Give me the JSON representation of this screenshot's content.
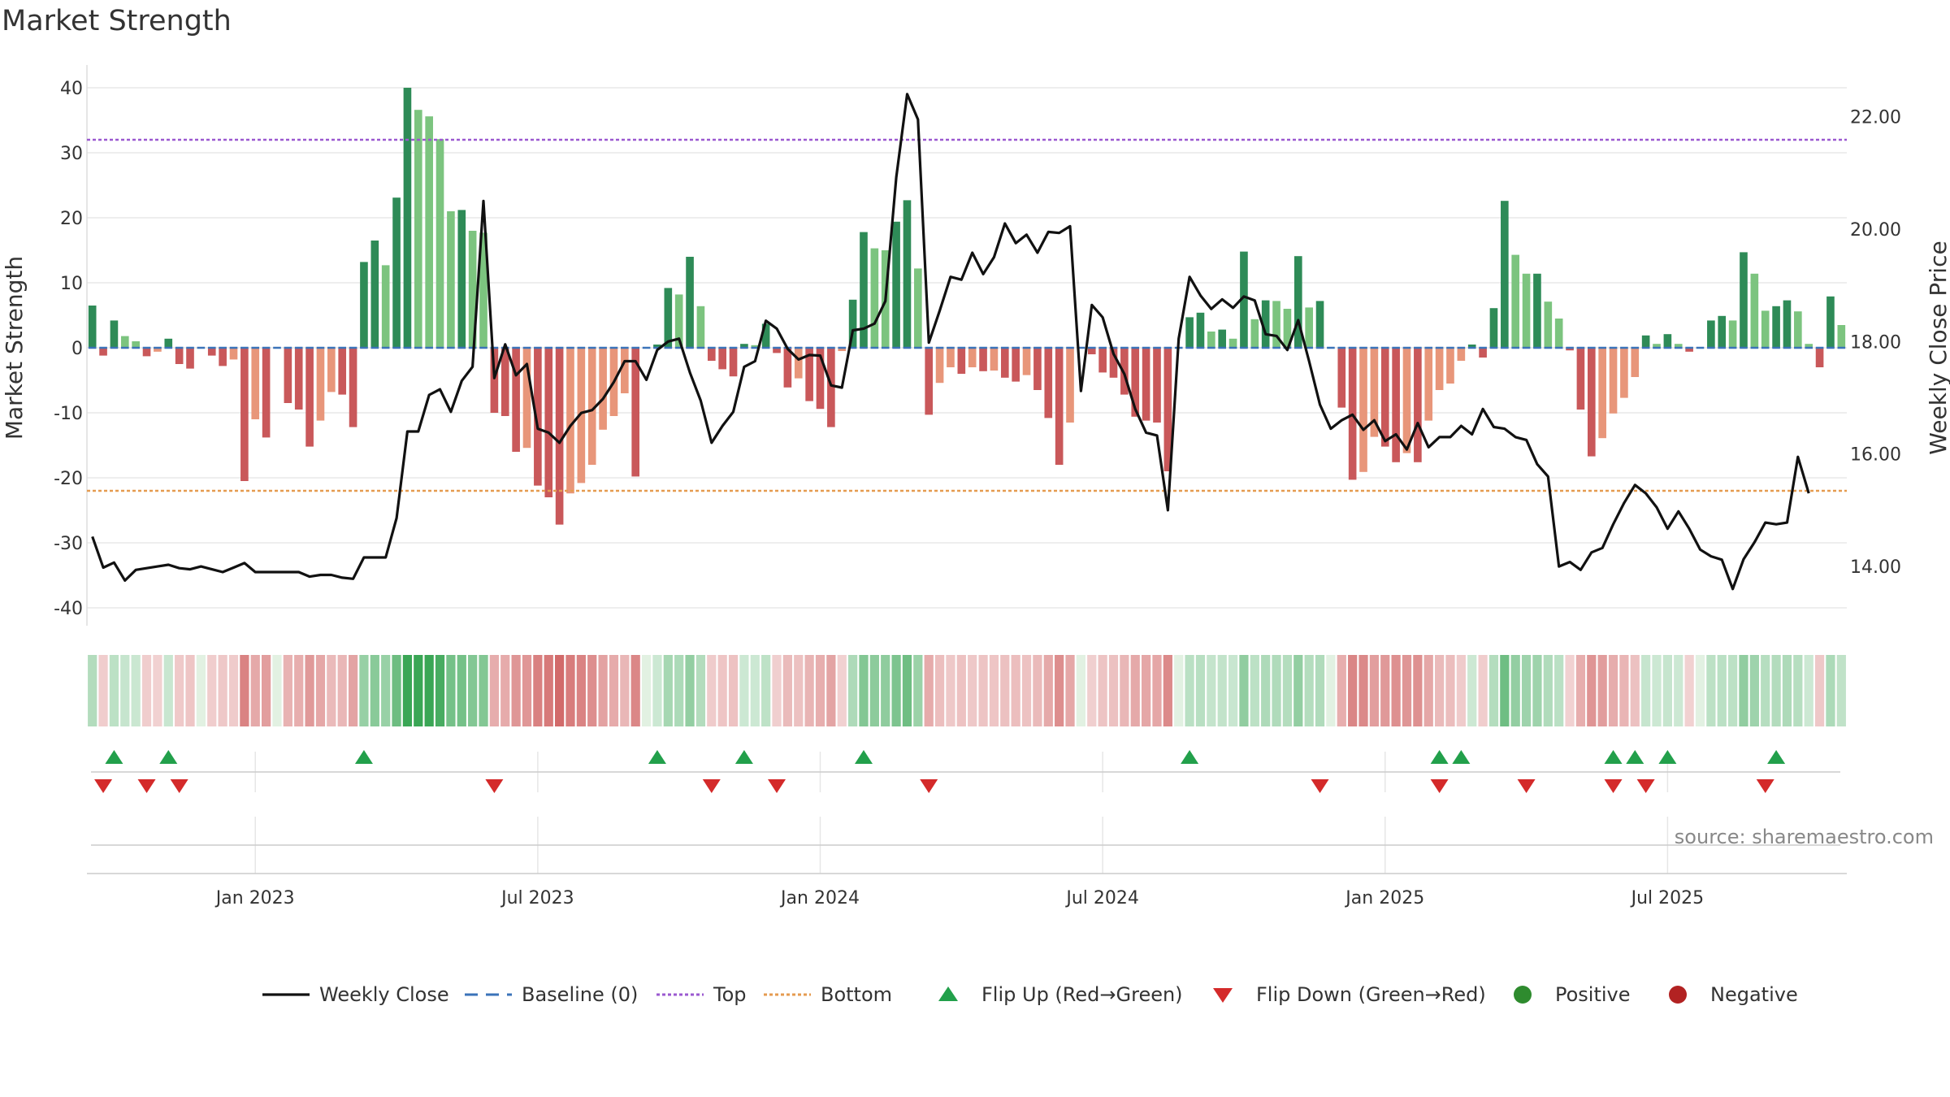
{
  "chart_data": {
    "type": "bar",
    "title": "Market Strength",
    "ylabel": "Market Strength",
    "y2label": "Weekly Close Price",
    "ylim": [
      -42,
      40
    ],
    "y2lim": [
      13.4,
      22.6
    ],
    "yticks": [
      40,
      30,
      20,
      10,
      0,
      -10,
      -20,
      -30,
      -40
    ],
    "y2ticks": [
      {
        "v": 22,
        "label": "22.00"
      },
      {
        "v": 20,
        "label": "20.00"
      },
      {
        "v": 18,
        "label": "18.00"
      },
      {
        "v": 16,
        "label": "16.00"
      },
      {
        "v": 14,
        "label": "14.00"
      }
    ],
    "xticks": [
      {
        "i": 15,
        "label": "Jan 2023"
      },
      {
        "i": 41,
        "label": "Jul 2023"
      },
      {
        "i": 67,
        "label": "Jan 2024"
      },
      {
        "i": 93,
        "label": "Jul 2024"
      },
      {
        "i": 119,
        "label": "Jan 2025"
      },
      {
        "i": 145,
        "label": "Jul 2025"
      }
    ],
    "top_line": 32,
    "bottom_line": -22,
    "strength": [
      6.5,
      -1.2,
      4.2,
      1.8,
      1.0,
      -1.3,
      -0.6,
      1.4,
      -2.5,
      -3.2,
      0,
      -1.2,
      -2.8,
      -1.8,
      -20.5,
      -11,
      -13.8,
      0,
      -8.5,
      -9.5,
      -15.2,
      -11.2,
      -6.8,
      -7.2,
      -12.2,
      13.2,
      16.5,
      12.7,
      23.1,
      40,
      36.6,
      35.6,
      32.1,
      21,
      21.2,
      18,
      17.7,
      -10,
      -10.5,
      -16,
      -15.4,
      -21.2,
      -23,
      -27.2,
      -22.4,
      -20.8,
      -18,
      -12.6,
      -10.5,
      -7,
      -19.8,
      0,
      0.5,
      9.2,
      8.2,
      14,
      6.4,
      -2,
      -3.3,
      -4.4,
      0.6,
      0.4,
      3.7,
      -0.8,
      -6.1,
      -4.7,
      -8.2,
      -9.4,
      -12.2,
      -0.5,
      7.4,
      17.8,
      15.3,
      15,
      19.4,
      22.7,
      12.2,
      -10.3,
      -5.4,
      -3,
      -4,
      -3,
      -3.6,
      -3.5,
      -4.6,
      -5.2,
      -4.2,
      -6.5,
      -10.8,
      -18,
      -11.5,
      0,
      -1,
      -3.8,
      -4.6,
      -7.2,
      -10.6,
      -11.2,
      -11.5,
      -19,
      0,
      4.7,
      5.4,
      2.5,
      2.8,
      1.4,
      14.8,
      4.4,
      7.3,
      7.2,
      6,
      14.1,
      6.2,
      7.2,
      0,
      -9.2,
      -20.3,
      -19.1,
      -13.7,
      -15.2,
      -17.6,
      -16.2,
      -17.6,
      -11.2,
      -6.5,
      -5.5,
      -2,
      0.5,
      -1.5,
      6.1,
      22.6,
      14.3,
      11.4,
      11.4,
      7.1,
      4.5,
      -0.4,
      -9.5,
      -16.7,
      -13.9,
      -10.1,
      -7.7,
      -4.5,
      1.9,
      0.6,
      2.1,
      0.6,
      -0.6,
      0,
      4.2,
      4.9,
      4.2,
      14.7,
      11.4,
      5.7,
      6.4,
      7.3,
      5.6,
      0.6,
      -3,
      7.9,
      3.5
    ],
    "close": [
      14.53,
      13.98,
      14.07,
      13.75,
      13.94,
      13.97,
      14.0,
      14.03,
      13.97,
      13.95,
      14.0,
      13.95,
      13.9,
      13.98,
      14.06,
      13.9,
      13.9,
      13.9,
      13.9,
      13.9,
      13.82,
      13.85,
      13.85,
      13.8,
      13.78,
      14.16,
      14.16,
      14.16,
      14.86,
      16.4,
      16.4,
      17.05,
      17.15,
      16.75,
      17.3,
      17.55,
      20.5,
      17.35,
      17.95,
      17.4,
      17.6,
      16.45,
      16.38,
      16.2,
      16.5,
      16.73,
      16.78,
      16.98,
      17.28,
      17.65,
      17.65,
      17.32,
      17.85,
      18.0,
      18.05,
      17.45,
      16.95,
      16.2,
      16.5,
      16.75,
      17.55,
      17.65,
      18.37,
      18.23,
      17.87,
      17.68,
      17.76,
      17.75,
      17.22,
      17.18,
      18.2,
      18.23,
      18.32,
      18.72,
      20.92,
      22.4,
      21.95,
      17.98,
      18.55,
      19.15,
      19.1,
      19.58,
      19.2,
      19.5,
      20.1,
      19.75,
      19.9,
      19.58,
      19.95,
      19.93,
      20.05,
      17.12,
      18.65,
      18.43,
      17.78,
      17.42,
      16.8,
      16.38,
      16.33,
      15.0,
      18.05,
      19.15,
      18.82,
      18.58,
      18.75,
      18.6,
      18.8,
      18.73,
      18.13,
      18.1,
      17.85,
      18.38,
      17.65,
      16.88,
      16.45,
      16.6,
      16.7,
      16.43,
      16.6,
      16.23,
      16.35,
      16.08,
      16.55,
      16.12,
      16.3,
      16.3,
      16.5,
      16.35,
      16.8,
      16.48,
      16.45,
      16.3,
      16.25,
      15.82,
      15.6,
      14.0,
      14.08,
      13.94,
      14.25,
      14.33,
      14.75,
      15.13,
      15.45,
      15.3,
      15.05,
      14.67,
      14.98,
      14.67,
      14.3,
      14.18,
      14.12,
      13.6,
      14.13,
      14.43,
      14.78,
      14.75,
      14.78,
      15.95,
      15.3
    ],
    "flip_up": [
      2,
      7,
      25,
      52,
      60,
      71,
      101,
      124,
      126,
      140,
      142,
      145,
      155
    ],
    "flip_down": [
      1,
      5,
      8,
      37,
      57,
      63,
      77,
      113,
      124,
      132,
      140,
      143,
      154
    ],
    "source": "source: sharemaestro.com",
    "colors": {
      "dark_green": "#2e8b57",
      "light_green": "#7cc47f",
      "dark_red": "#c9585a",
      "light_red": "#e8967a",
      "line": "#111111",
      "baseline": "#3b73b9",
      "top": "#9b59d0",
      "bottom": "#e59b50",
      "flip_up": "#22a04b",
      "flip_down": "#d42a2a",
      "positive": "#2e8b2e",
      "negative": "#b22222"
    },
    "legend": [
      {
        "key": "line",
        "label": "Weekly Close"
      },
      {
        "key": "baseline",
        "label": "Baseline (0)"
      },
      {
        "key": "top",
        "label": "Top"
      },
      {
        "key": "bottom",
        "label": "Bottom"
      },
      {
        "key": "flip_up",
        "label": "Flip Up (Red→Green)"
      },
      {
        "key": "flip_down",
        "label": "Flip Down (Green→Red)"
      },
      {
        "key": "positive",
        "label": "Positive"
      },
      {
        "key": "negative",
        "label": "Negative"
      }
    ]
  }
}
